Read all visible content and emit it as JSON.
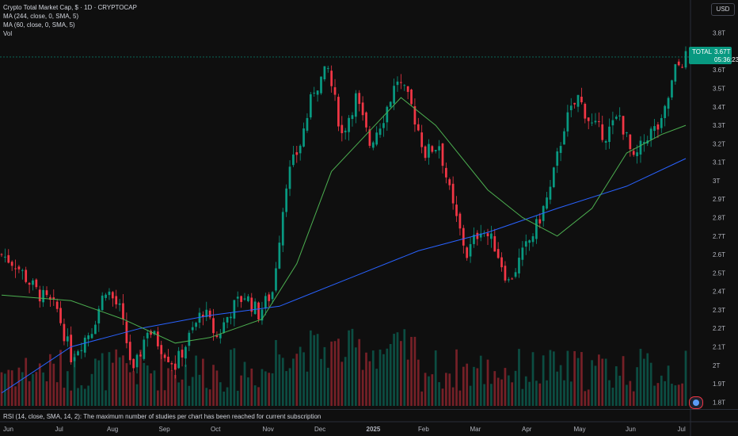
{
  "header": {
    "title": "Crypto Total Market Cap, $ · 1D · CRYPTOCAP",
    "indicators": [
      "MA (244, close, 0, SMA, 5)",
      "MA (60, close, 0, SMA, 5)",
      "Vol"
    ]
  },
  "toolbar": {
    "currency_label": "USD"
  },
  "price_tag": {
    "symbol": "TOTAL",
    "value": "3.67T",
    "countdown": "05:36:23"
  },
  "rsi_note": "RSI (14, close, SMA, 14, 2): The maximum number of studies per chart has been reached for current subscription",
  "colors": {
    "up": "#089981",
    "down": "#f23645",
    "ma_long": "#2962ff",
    "ma_short": "#4caf50",
    "background": "#0f0f0f"
  },
  "icons": {
    "flag": "us-flag-icon"
  },
  "chart_data": {
    "type": "candlestick",
    "y_unit": "T USD",
    "yaxis_labels": [
      "3.8T",
      "3.7T",
      "3.6T",
      "3.5T",
      "3.4T",
      "3.3T",
      "3.2T",
      "3.1T",
      "3T",
      "2.9T",
      "2.8T",
      "2.7T",
      "2.6T",
      "2.5T",
      "2.4T",
      "2.3T",
      "2.2T",
      "2.1T",
      "2T",
      "1.9T",
      "1.8T"
    ],
    "xaxis_labels": [
      "Jun",
      "Jul",
      "Aug",
      "Sep",
      "Oct",
      "Nov",
      "Dec",
      "2025",
      "Feb",
      "Mar",
      "Apr",
      "May",
      "Jun",
      "Jul"
    ],
    "ylim": [
      1.78,
      3.85
    ],
    "close_path": [
      {
        "t": 0,
        "v": 2.6
      },
      {
        "t": 4,
        "v": 2.55
      },
      {
        "t": 10,
        "v": 2.4
      },
      {
        "t": 16,
        "v": 2.3
      },
      {
        "t": 20,
        "v": 2.05
      },
      {
        "t": 26,
        "v": 2.2
      },
      {
        "t": 30,
        "v": 2.42
      },
      {
        "t": 34,
        "v": 2.3
      },
      {
        "t": 38,
        "v": 1.95
      },
      {
        "t": 42,
        "v": 2.2
      },
      {
        "t": 46,
        "v": 2.1
      },
      {
        "t": 50,
        "v": 2.0
      },
      {
        "t": 54,
        "v": 2.15
      },
      {
        "t": 58,
        "v": 2.3
      },
      {
        "t": 62,
        "v": 2.15
      },
      {
        "t": 66,
        "v": 2.3
      },
      {
        "t": 70,
        "v": 2.38
      },
      {
        "t": 74,
        "v": 2.28
      },
      {
        "t": 78,
        "v": 2.4
      },
      {
        "t": 82,
        "v": 3.0
      },
      {
        "t": 86,
        "v": 3.2
      },
      {
        "t": 90,
        "v": 3.5
      },
      {
        "t": 94,
        "v": 3.6
      },
      {
        "t": 98,
        "v": 3.25
      },
      {
        "t": 102,
        "v": 3.45
      },
      {
        "t": 106,
        "v": 3.2
      },
      {
        "t": 110,
        "v": 3.35
      },
      {
        "t": 114,
        "v": 3.55
      },
      {
        "t": 118,
        "v": 3.4
      },
      {
        "t": 122,
        "v": 3.15
      },
      {
        "t": 126,
        "v": 3.2
      },
      {
        "t": 130,
        "v": 2.85
      },
      {
        "t": 134,
        "v": 2.6
      },
      {
        "t": 138,
        "v": 2.75
      },
      {
        "t": 142,
        "v": 2.65
      },
      {
        "t": 146,
        "v": 2.45
      },
      {
        "t": 150,
        "v": 2.6
      },
      {
        "t": 154,
        "v": 2.75
      },
      {
        "t": 158,
        "v": 2.95
      },
      {
        "t": 162,
        "v": 3.3
      },
      {
        "t": 166,
        "v": 3.45
      },
      {
        "t": 170,
        "v": 3.3
      },
      {
        "t": 174,
        "v": 3.25
      },
      {
        "t": 178,
        "v": 3.35
      },
      {
        "t": 182,
        "v": 3.1
      },
      {
        "t": 186,
        "v": 3.25
      },
      {
        "t": 190,
        "v": 3.3
      },
      {
        "t": 194,
        "v": 3.6
      },
      {
        "t": 197,
        "v": 3.67
      }
    ],
    "total_days": 197,
    "series": [
      {
        "name": "MA (244, close, 0, SMA, 5)",
        "points": [
          [
            0,
            1.85
          ],
          [
            20,
            2.1
          ],
          [
            40,
            2.2
          ],
          [
            60,
            2.27
          ],
          [
            80,
            2.32
          ],
          [
            100,
            2.47
          ],
          [
            120,
            2.62
          ],
          [
            140,
            2.72
          ],
          [
            160,
            2.85
          ],
          [
            180,
            2.97
          ],
          [
            197,
            3.12
          ]
        ]
      },
      {
        "name": "MA (60, close, 0, SMA, 5)",
        "points": [
          [
            0,
            2.38
          ],
          [
            20,
            2.35
          ],
          [
            35,
            2.25
          ],
          [
            50,
            2.12
          ],
          [
            60,
            2.15
          ],
          [
            75,
            2.25
          ],
          [
            85,
            2.55
          ],
          [
            95,
            3.05
          ],
          [
            105,
            3.25
          ],
          [
            115,
            3.45
          ],
          [
            125,
            3.3
          ],
          [
            140,
            2.95
          ],
          [
            150,
            2.8
          ],
          [
            160,
            2.7
          ],
          [
            170,
            2.85
          ],
          [
            180,
            3.15
          ],
          [
            190,
            3.25
          ],
          [
            197,
            3.3
          ]
        ]
      }
    ],
    "last_value": 3.67
  }
}
